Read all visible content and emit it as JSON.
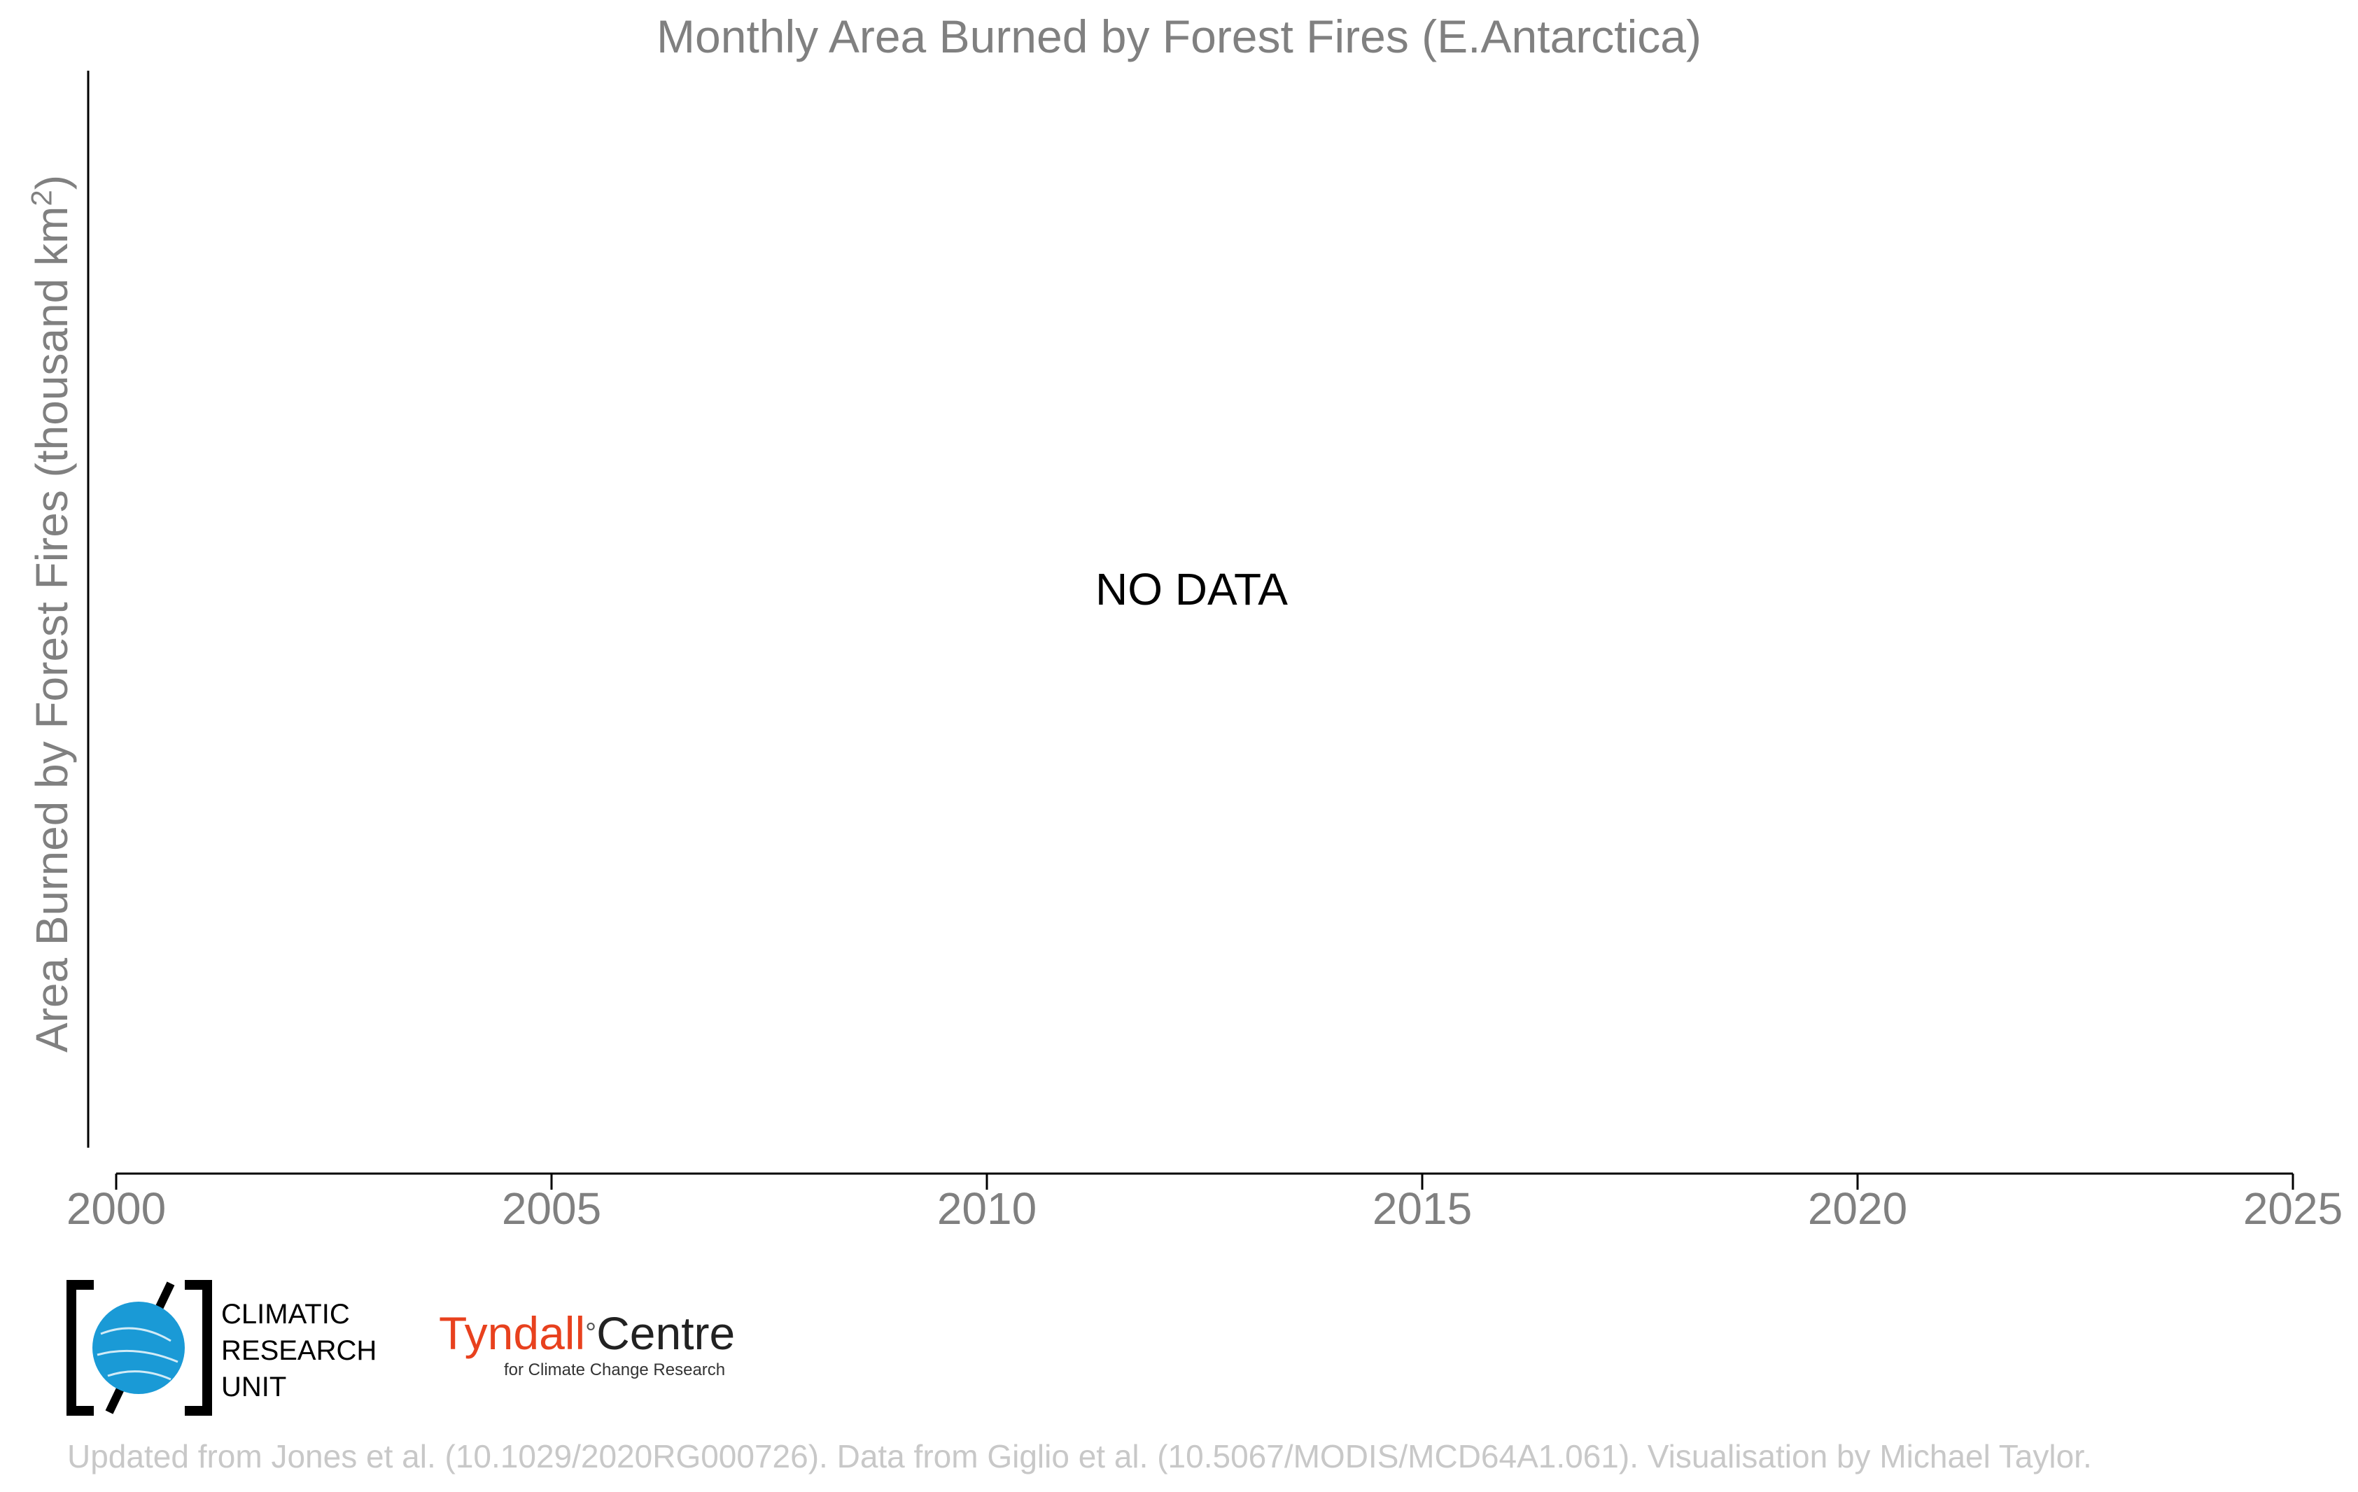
{
  "chart_data": {
    "type": "line",
    "title": "Monthly Area Burned by Forest Fires (E.Antarctica)",
    "xlabel": "",
    "ylabel": "Area Burned by Forest Fires (thousand km",
    "ylabel_superscript": "2",
    "ylabel_suffix": ")",
    "annotation": "NO DATA",
    "xlim": [
      2000,
      2025
    ],
    "x_ticks": [
      "2000",
      "2005",
      "2010",
      "2015",
      "2020",
      "2025"
    ],
    "series": [],
    "grid": false
  },
  "logos": {
    "cru": [
      "CLIMATIC",
      "RESEARCH",
      "UNIT"
    ],
    "tyndall_main": "Tyndall",
    "tyndall_degree": "°",
    "tyndall_centre": "Centre",
    "tyndall_sub": "for Climate Change Research"
  },
  "footer": "Updated from Jones et al. (10.1029/2020RG000726). Data from Giglio et al. (10.5067/MODIS/MCD64A1.061). Visualisation by Michael Taylor.",
  "colors": {
    "axis": "#000000",
    "text_gray": "#808080",
    "cru_blue": "#1a9ad6",
    "tyndall_red": "#e8411e"
  }
}
